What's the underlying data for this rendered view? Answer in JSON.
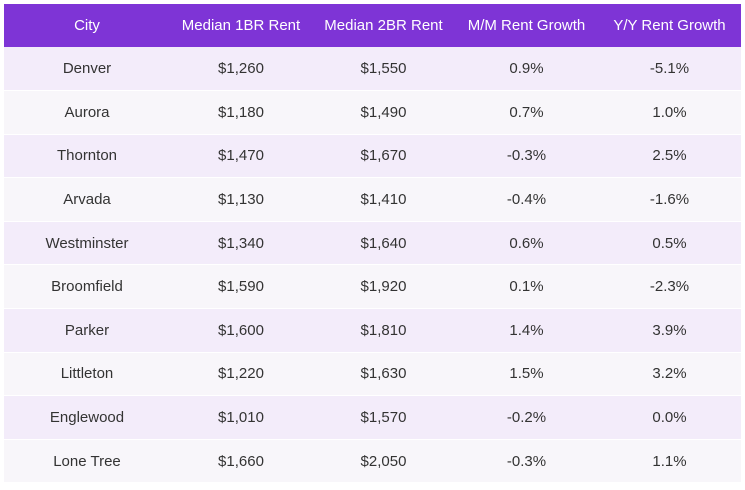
{
  "table": {
    "headers": [
      "City",
      "Median 1BR Rent",
      "Median 2BR Rent",
      "M/M Rent Growth",
      "Y/Y Rent Growth"
    ],
    "rows": [
      [
        "Denver",
        "$1,260",
        "$1,550",
        "0.9%",
        "-5.1%"
      ],
      [
        "Aurora",
        "$1,180",
        "$1,490",
        "0.7%",
        "1.0%"
      ],
      [
        "Thornton",
        "$1,470",
        "$1,670",
        "-0.3%",
        "2.5%"
      ],
      [
        "Arvada",
        "$1,130",
        "$1,410",
        "-0.4%",
        "-1.6%"
      ],
      [
        "Westminster",
        "$1,340",
        "$1,640",
        "0.6%",
        "0.5%"
      ],
      [
        "Broomfield",
        "$1,590",
        "$1,920",
        "0.1%",
        "-2.3%"
      ],
      [
        "Parker",
        "$1,600",
        "$1,810",
        "1.4%",
        "3.9%"
      ],
      [
        "Littleton",
        "$1,220",
        "$1,630",
        "1.5%",
        "3.2%"
      ],
      [
        "Englewood",
        "$1,010",
        "$1,570",
        "-0.2%",
        "0.0%"
      ],
      [
        "Lone Tree",
        "$1,660",
        "$2,050",
        "-0.3%",
        "1.1%"
      ]
    ]
  },
  "colors": {
    "header_bg": "#7e34d6",
    "header_text": "#ffffff",
    "row_odd_bg": "#f3ecfa",
    "row_even_bg": "#f8f6fa",
    "cell_text": "#333333"
  }
}
